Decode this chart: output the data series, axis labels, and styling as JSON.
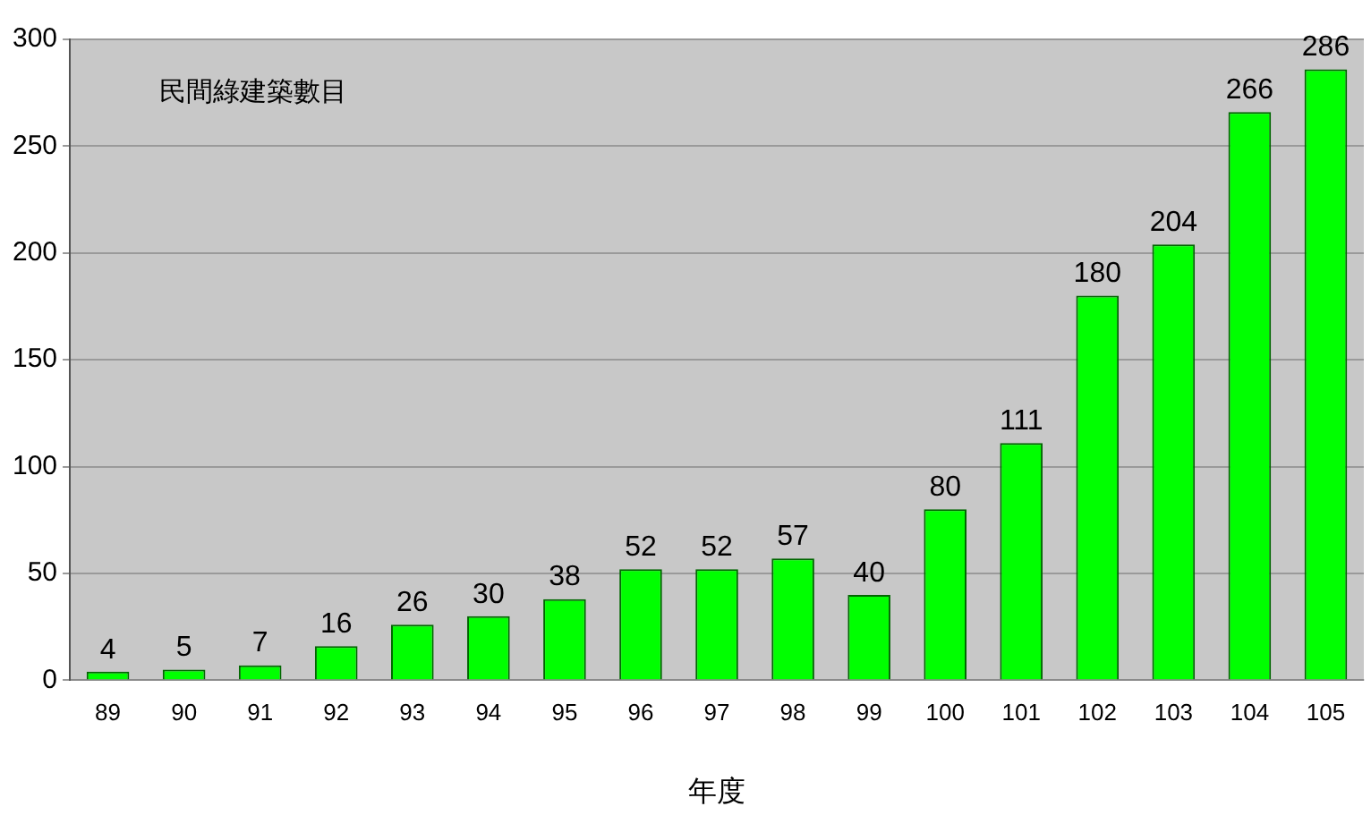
{
  "chart_data": {
    "type": "bar",
    "title": "民間綠建築數目",
    "xlabel": "年度",
    "categories": [
      "89",
      "90",
      "91",
      "92",
      "93",
      "94",
      "95",
      "96",
      "97",
      "98",
      "99",
      "100",
      "101",
      "102",
      "103",
      "104",
      "105"
    ],
    "values": [
      4,
      5,
      7,
      16,
      26,
      30,
      38,
      52,
      52,
      57,
      40,
      80,
      111,
      180,
      204,
      266,
      286
    ],
    "color": "#00ff00",
    "ylim": [
      0,
      300
    ],
    "yticks": [
      0,
      50,
      100,
      150,
      200,
      250,
      300
    ],
    "grid": "y",
    "data_labels": true
  }
}
